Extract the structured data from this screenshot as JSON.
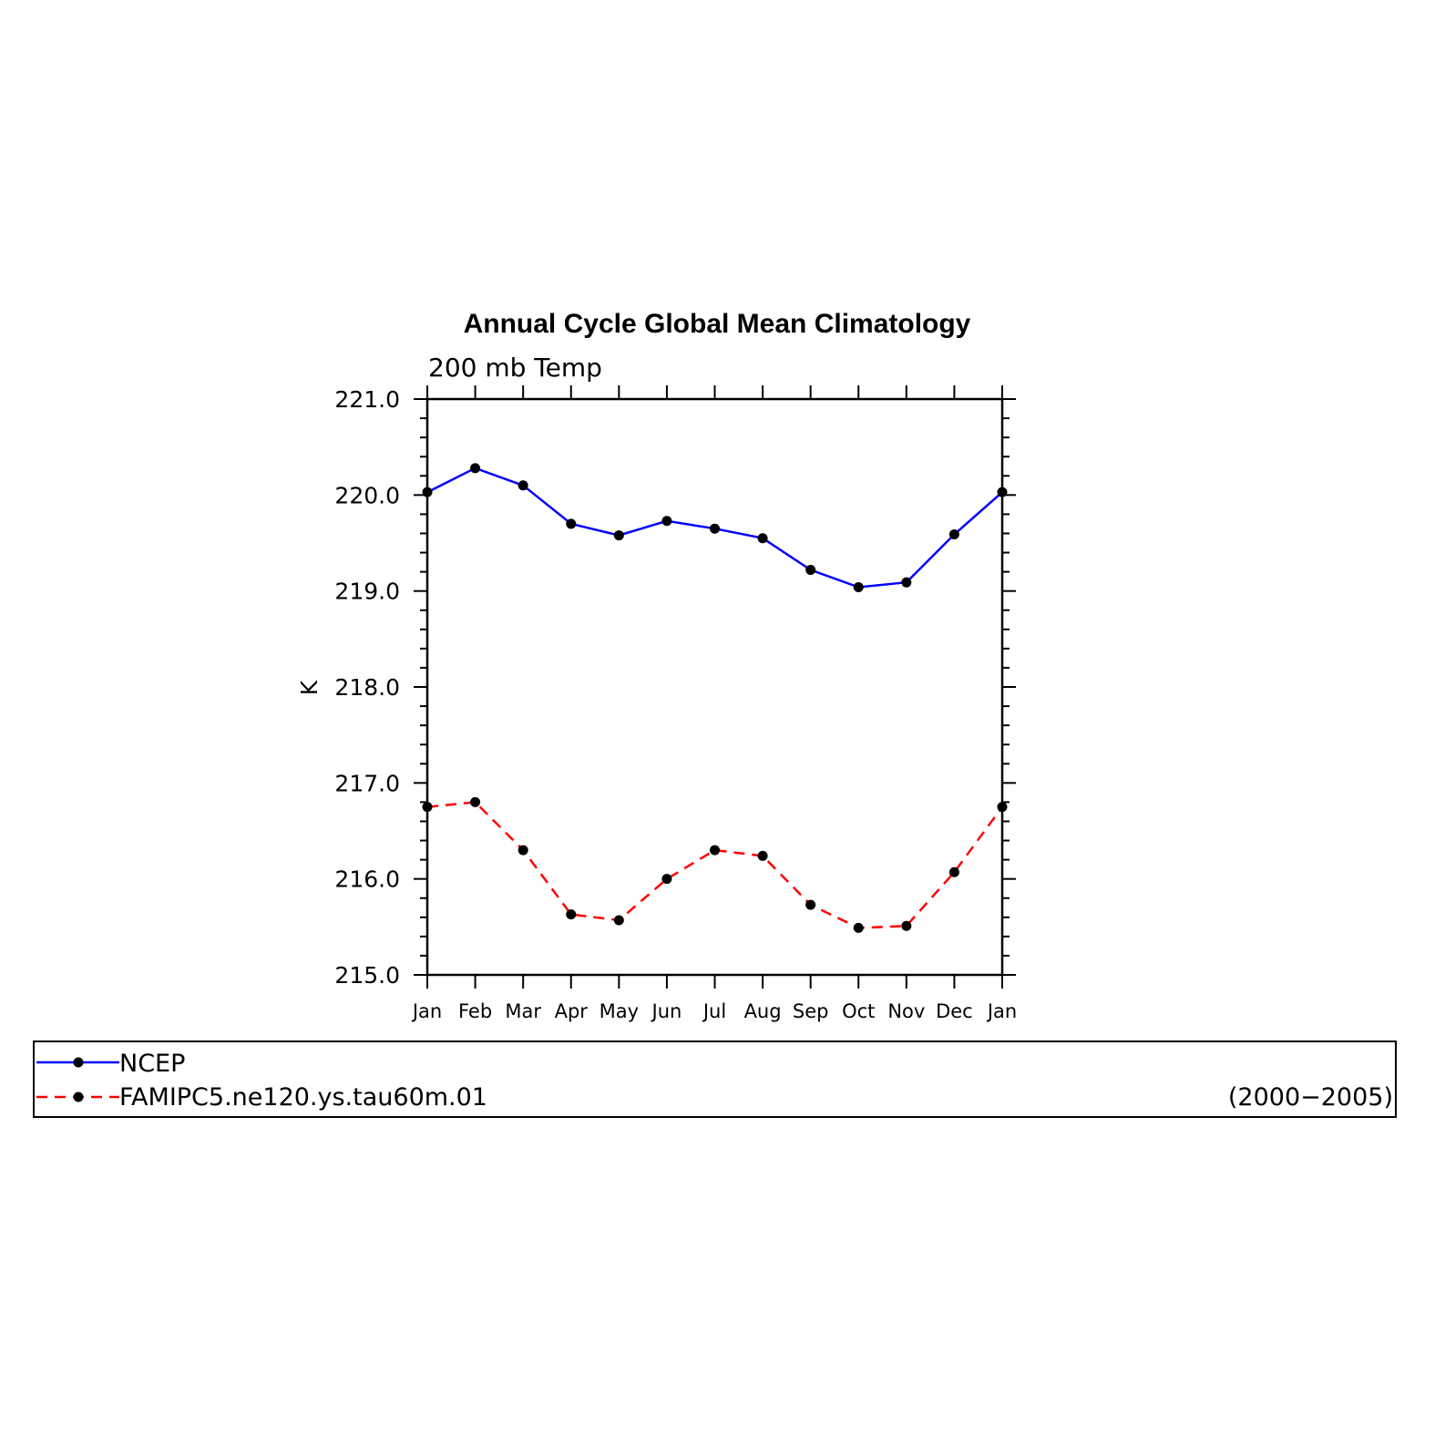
{
  "chart_data": {
    "type": "line",
    "title": "Annual Cycle Global Mean Climatology",
    "subtitle": "200 mb Temp",
    "ylabel": "K",
    "xlabel": "",
    "ylim": [
      215.0,
      221.0
    ],
    "yticks": [
      "215.0",
      "216.0",
      "217.0",
      "218.0",
      "219.0",
      "220.0",
      "221.0"
    ],
    "categories": [
      "Jan",
      "Feb",
      "Mar",
      "Apr",
      "May",
      "Jun",
      "Jul",
      "Aug",
      "Sep",
      "Oct",
      "Nov",
      "Dec",
      "Jan"
    ],
    "series": [
      {
        "name": "NCEP",
        "color": "#0000ff",
        "style": "solid",
        "values": [
          220.03,
          220.28,
          220.1,
          219.7,
          219.58,
          219.73,
          219.65,
          219.55,
          219.22,
          219.04,
          219.09,
          219.59,
          220.03
        ]
      },
      {
        "name": "FAMIPC5.ne120.ys.tau60m.01",
        "color": "#ff0000",
        "style": "dashed",
        "values": [
          216.75,
          216.8,
          216.3,
          215.63,
          215.57,
          216.0,
          216.3,
          216.24,
          215.73,
          215.49,
          215.51,
          216.07,
          216.75
        ]
      }
    ],
    "legend_placement": "bottom",
    "date_range": "(2000−2005)",
    "marker_color": "#000000"
  }
}
